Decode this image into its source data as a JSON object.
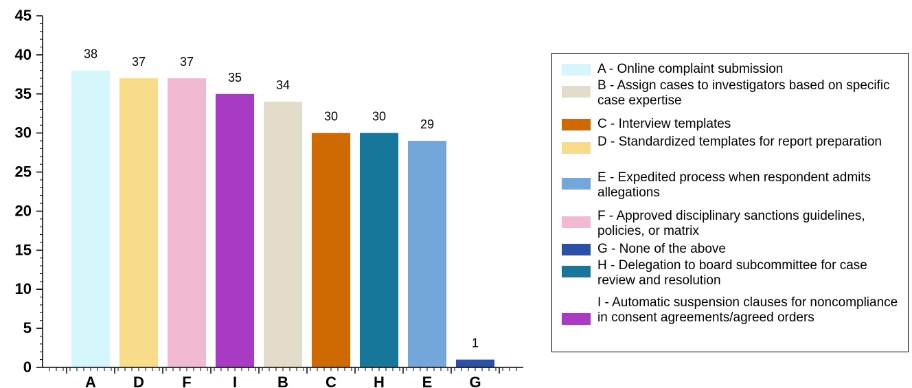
{
  "chart_data": {
    "type": "bar",
    "categories": [
      "A",
      "D",
      "F",
      "I",
      "B",
      "C",
      "H",
      "E",
      "G"
    ],
    "values": [
      38,
      37,
      37,
      35,
      34,
      30,
      30,
      29,
      1
    ],
    "colors": [
      "#d5f6fb",
      "#f9dc8a",
      "#f2bad2",
      "#a83ac4",
      "#e3dccb",
      "#cf6a03",
      "#16779a",
      "#73a6da",
      "#2b50a8"
    ],
    "ylim": [
      0,
      45
    ],
    "yticks": [
      0,
      5,
      10,
      15,
      20,
      25,
      30,
      35,
      40,
      45
    ],
    "data_labels": true,
    "grid": false,
    "legend_position": "right",
    "legend": [
      {
        "key": "A",
        "text": "A - Online complaint submission",
        "color": "#d5f6fb"
      },
      {
        "key": "B",
        "text": "B - Assign cases to investigators based on specific case expertise",
        "color": "#e3dccb"
      },
      {
        "key": "C",
        "text": "C - Interview templates",
        "color": "#cf6a03"
      },
      {
        "key": "D",
        "text": "D - Standardized templates for report preparation",
        "color": "#f9dc8a"
      },
      {
        "key": "E",
        "text": "E - Expedited process when respondent admits allegations",
        "color": "#73a6da"
      },
      {
        "key": "F",
        "text": "F - Approved disciplinary sanctions guidelines, policies, or matrix",
        "color": "#f2bad2"
      },
      {
        "key": "G",
        "text": "G - None of the above",
        "color": "#2b50a8"
      },
      {
        "key": "H",
        "text": "H - Delegation to board subcommittee for case review and resolution",
        "color": "#16779a"
      },
      {
        "key": "I",
        "text": "I - Automatic suspension clauses for noncompliance in consent agreements/agreed orders",
        "color": "#a83ac4"
      }
    ]
  }
}
